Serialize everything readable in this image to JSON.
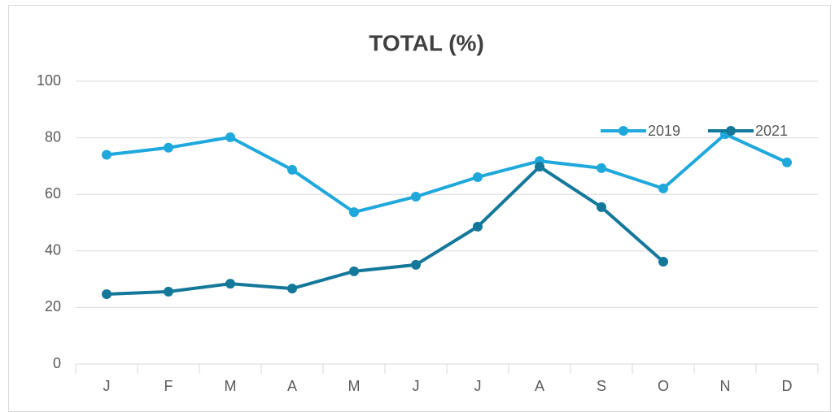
{
  "chart_data": {
    "type": "line",
    "title": "TOTAL (%)",
    "categories": [
      "J",
      "F",
      "M",
      "A",
      "M",
      "J",
      "J",
      "A",
      "S",
      "O",
      "N",
      "D"
    ],
    "series": [
      {
        "name": "2019",
        "color": "#1fa8dc",
        "values": [
          74,
          76.5,
          80.2,
          68.7,
          53.7,
          59.2,
          66.1,
          71.8,
          69.3,
          62.1,
          81.3,
          71.3
        ]
      },
      {
        "name": "2021",
        "color": "#13789a",
        "values": [
          24.7,
          25.6,
          28.4,
          26.7,
          32.8,
          35.1,
          48.6,
          69.8,
          55.5,
          36.2,
          null,
          null
        ]
      }
    ],
    "ylim": [
      0,
      100
    ],
    "yticks": [
      0,
      20,
      40,
      60,
      80,
      100
    ],
    "grid": true,
    "legend": "top-right"
  }
}
